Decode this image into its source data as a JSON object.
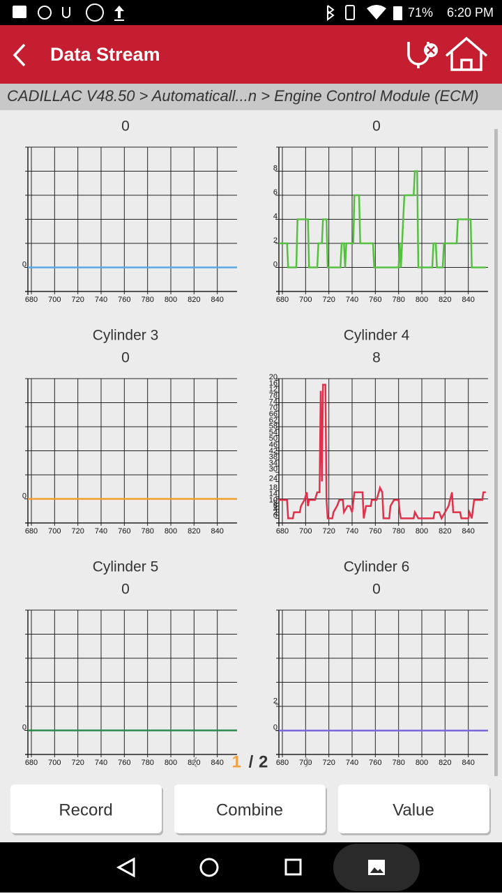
{
  "status_bar": {
    "battery": "71%",
    "time": "6:20 PM"
  },
  "header": {
    "title": "Data Stream"
  },
  "breadcrumb": "CADILLAC V48.50 > Automaticall...n > Engine Control Module (ECM)",
  "chart_data": [
    {
      "type": "line",
      "value": "0",
      "xlim": [
        677,
        857
      ],
      "xticks": [
        680,
        700,
        720,
        740,
        760,
        780,
        800,
        820,
        840
      ],
      "ylim": [
        -1,
        5
      ],
      "yticks": [
        0
      ],
      "grid": true,
      "x": [
        677,
        857
      ],
      "series": [
        {
          "color": "#5aa9e6",
          "values": [
            0,
            0
          ]
        }
      ]
    },
    {
      "type": "line",
      "value": "0",
      "xlim": [
        677,
        857
      ],
      "xticks": [
        680,
        700,
        720,
        740,
        760,
        780,
        800,
        820,
        840
      ],
      "ylim": [
        -2,
        10
      ],
      "yticks": [
        0,
        2,
        4,
        6,
        8
      ],
      "grid": true,
      "x": [
        677,
        684,
        685,
        692,
        693,
        702,
        703,
        710,
        711,
        714,
        715,
        718,
        719,
        730,
        731,
        733,
        734,
        735,
        741,
        742,
        746,
        747,
        758,
        759,
        780,
        781,
        782,
        783,
        784,
        785,
        793,
        794,
        796,
        797,
        809,
        810,
        812,
        813,
        818,
        819,
        830,
        831,
        842,
        843,
        855
      ],
      "series": [
        {
          "color": "#55c040",
          "values": [
            2,
            2,
            0,
            0,
            4,
            4,
            0,
            0,
            2,
            2,
            4,
            4,
            0,
            0,
            2,
            2,
            0,
            2,
            2,
            6,
            6,
            2,
            2,
            0,
            0,
            2,
            0,
            2,
            4,
            6,
            6,
            8,
            8,
            0,
            0,
            2,
            2,
            0,
            0,
            2,
            2,
            4,
            4,
            0,
            0
          ]
        }
      ]
    },
    {
      "type": "line",
      "title": "Cylinder 3",
      "value": "0",
      "xlim": [
        677,
        857
      ],
      "xticks": [
        680,
        700,
        720,
        740,
        760,
        780,
        800,
        820,
        840
      ],
      "ylim": [
        -1,
        5
      ],
      "yticks": [
        0
      ],
      "grid": true,
      "x": [
        677,
        857
      ],
      "series": [
        {
          "color": "#f0a030",
          "values": [
            0,
            0
          ]
        }
      ]
    },
    {
      "type": "line",
      "title": "Cylinder 4",
      "value": "8",
      "xlim": [
        677,
        857
      ],
      "xticks": [
        680,
        700,
        720,
        740,
        760,
        780,
        800,
        820,
        840
      ],
      "ylim": [
        -3,
        91
      ],
      "yticks": [
        0,
        2,
        4,
        6,
        8,
        10,
        14,
        18,
        24,
        30,
        34,
        38,
        42,
        46,
        50,
        54,
        58,
        62,
        66,
        70,
        74,
        78,
        {
          "value": 82,
          "label": "12"
        },
        {
          "value": 86,
          "label": "16"
        },
        {
          "value": 90,
          "label": "20"
        }
      ],
      "grid": true,
      "x": [
        677,
        684,
        685,
        689,
        690,
        695,
        696,
        699,
        701,
        702,
        703,
        708,
        710,
        712,
        713,
        714,
        715,
        717,
        718,
        719,
        723,
        724,
        727,
        729,
        732,
        733,
        736,
        738,
        740,
        742,
        749,
        750,
        752,
        756,
        757,
        761,
        763,
        764,
        766,
        767,
        772,
        773,
        776,
        780,
        781,
        782,
        793,
        794,
        797,
        810,
        811,
        815,
        817,
        823,
        826,
        827,
        833,
        834,
        840,
        841,
        843,
        845,
        852,
        853,
        855
      ],
      "series": [
        {
          "color": "#e0304a",
          "values": [
            12,
            12,
            0,
            0,
            4,
            4,
            8,
            12,
            17,
            8,
            12,
            12,
            17,
            17,
            83,
            24,
            87,
            87,
            12,
            0,
            0,
            4,
            8,
            12,
            12,
            4,
            8,
            8,
            4,
            17,
            17,
            0,
            8,
            8,
            12,
            12,
            17,
            20,
            17,
            0,
            0,
            8,
            12,
            12,
            4,
            0,
            0,
            4,
            0,
            0,
            4,
            4,
            0,
            8,
            17,
            4,
            4,
            0,
            0,
            4,
            0,
            12,
            12,
            17,
            17
          ]
        }
      ]
    },
    {
      "type": "line",
      "title": "Cylinder 5",
      "value": "0",
      "xlim": [
        677,
        857
      ],
      "xticks": [
        680,
        700,
        720,
        740,
        760,
        780,
        800,
        820,
        840
      ],
      "ylim": [
        -1,
        5
      ],
      "yticks": [
        0
      ],
      "grid": true,
      "x": [
        677,
        857
      ],
      "series": [
        {
          "color": "#2a8a4a",
          "values": [
            0,
            0
          ]
        }
      ]
    },
    {
      "type": "line",
      "title": "Cylinder 6",
      "value": "0",
      "xlim": [
        677,
        857
      ],
      "xticks": [
        680,
        700,
        720,
        740,
        760,
        780,
        800,
        820,
        840
      ],
      "ylim": [
        -1.8,
        9.1
      ],
      "yticks": [
        0,
        2
      ],
      "grid": true,
      "x": [
        677,
        857
      ],
      "series": [
        {
          "color": "#7b68d8",
          "values": [
            0,
            0
          ]
        }
      ]
    }
  ],
  "pager": {
    "current": "1",
    "separator": "/",
    "total": "2"
  },
  "buttons": [
    "Record",
    "Combine",
    "Value"
  ]
}
